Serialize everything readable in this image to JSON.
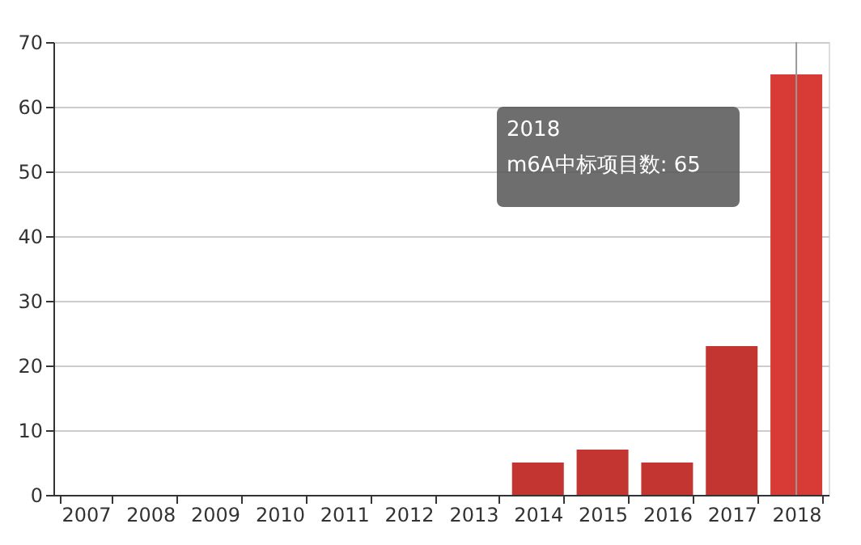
{
  "chart_data": {
    "type": "bar",
    "categories": [
      "2007",
      "2008",
      "2009",
      "2010",
      "2011",
      "2012",
      "2013",
      "2014",
      "2015",
      "2016",
      "2017",
      "2018"
    ],
    "series": [
      {
        "colors": [
          "#c23531",
          "#c23531",
          "#c23531",
          "#c23531",
          "#c23531",
          "#c23531",
          "#c23531",
          "#c23531",
          "#c23531",
          "#c23531",
          "#c23531",
          "#d83a35"
        ],
        "values": [
          0,
          0,
          0,
          0,
          0,
          0,
          0,
          5,
          7,
          5,
          23,
          65
        ]
      }
    ],
    "ylim": [
      0,
      70
    ],
    "yticks": [
      0,
      10,
      20,
      30,
      40,
      50,
      60,
      70
    ],
    "grid": "y",
    "ref_lines": [
      {
        "axis": "x",
        "value": "2018",
        "label": null,
        "color": "#999999"
      }
    ],
    "annotations": [
      "2018",
      "m6A中标项目数: 65"
    ]
  }
}
